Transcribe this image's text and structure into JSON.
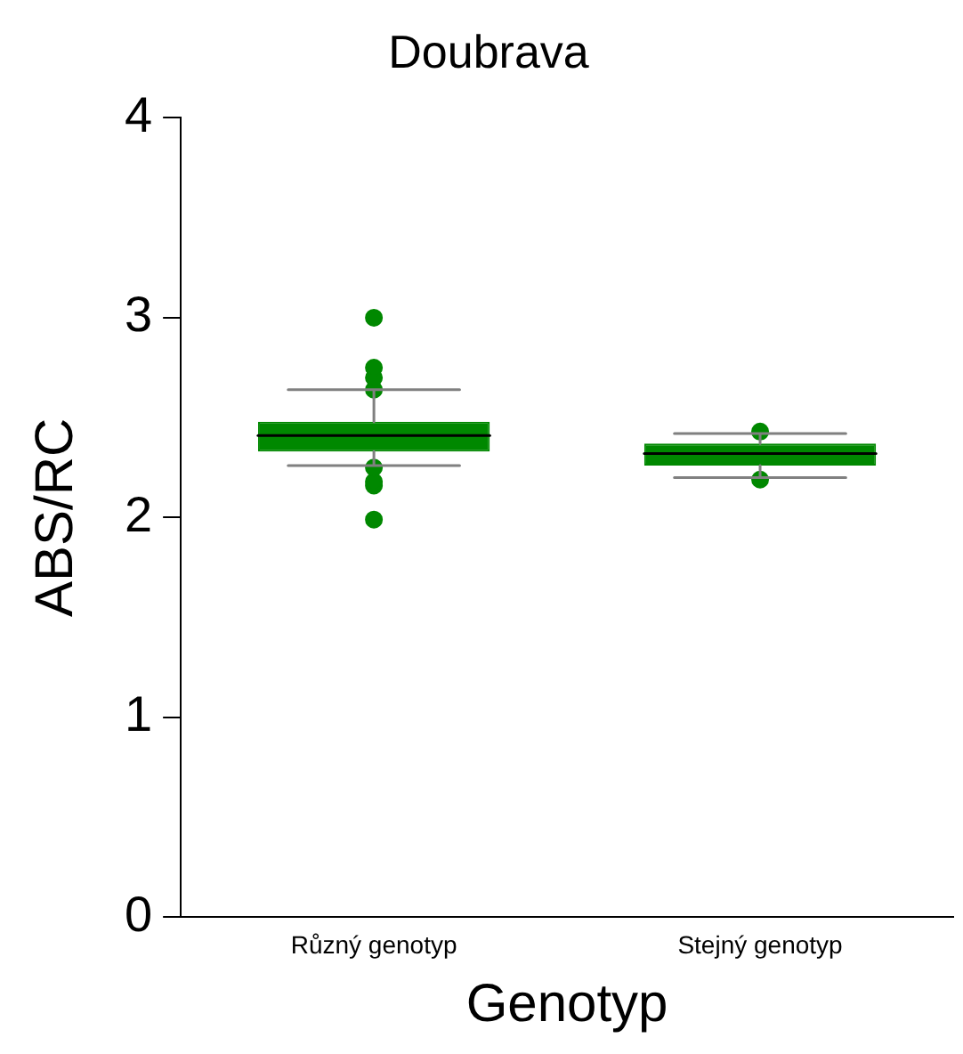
{
  "chart_data": {
    "type": "box",
    "title": "Doubrava",
    "xlabel": "Genotyp",
    "ylabel": "ABS/RC",
    "categories": [
      "Různý genotyp",
      "Stejný genotyp"
    ],
    "boxes": [
      {
        "low": 2.26,
        "q1": 2.33,
        "median": 2.41,
        "q3": 2.48,
        "high": 2.64,
        "outliers": [
          3.0,
          2.75,
          2.7,
          2.64,
          2.25,
          2.18,
          2.16,
          1.99
        ]
      },
      {
        "low": 2.2,
        "q1": 2.26,
        "median": 2.32,
        "q3": 2.37,
        "high": 2.42,
        "outliers": [
          2.43,
          2.19
        ]
      }
    ],
    "color": "#008800",
    "ylim": [
      0,
      4
    ],
    "yticks": [
      0,
      1,
      2,
      3,
      4
    ],
    "grid": false,
    "marker": "circle"
  }
}
